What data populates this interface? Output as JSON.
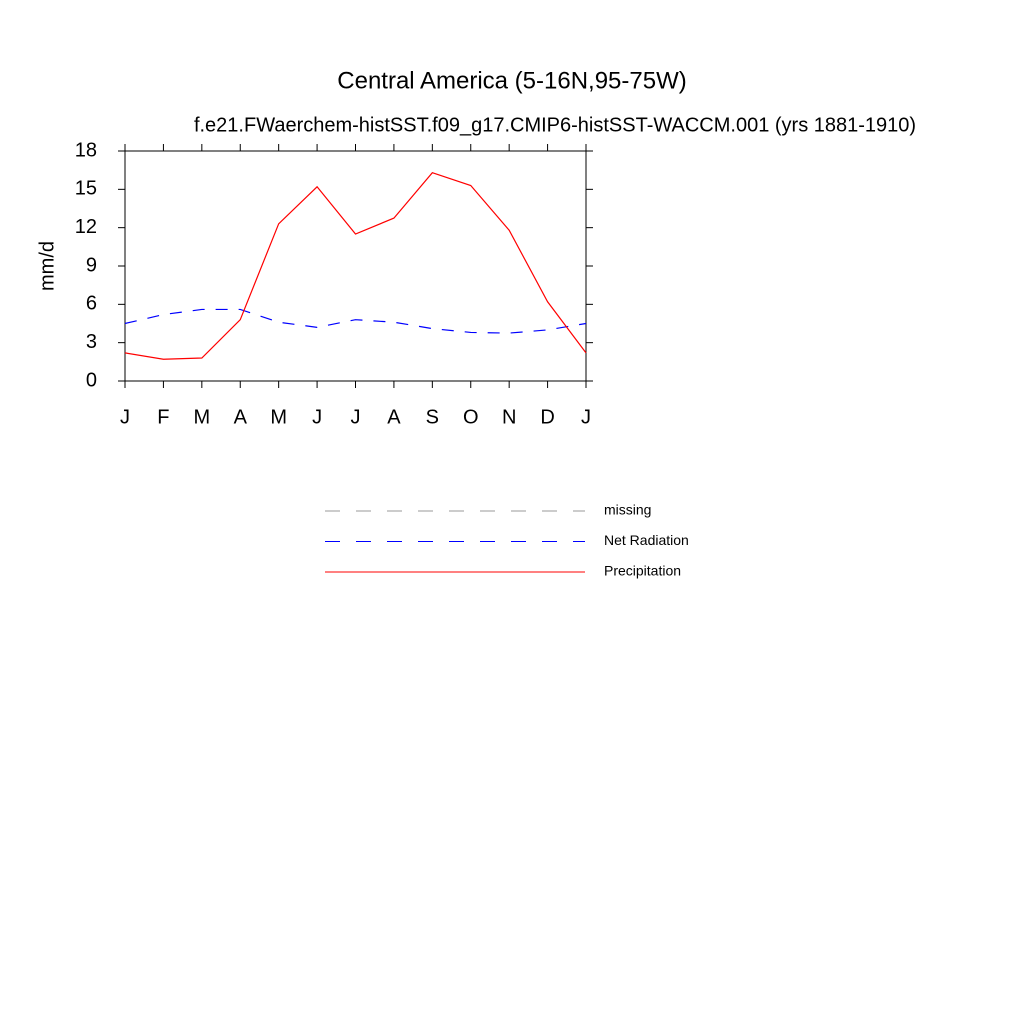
{
  "chart_data": {
    "type": "line",
    "title": "Central America (5-16N,95-75W)",
    "subtitle": "f.e21.FWaerchem-histSST.f09_g17.CMIP6-histSST-WACCM.001 (yrs 1881-1910)",
    "y_label": "mm/d",
    "categories": [
      "J",
      "F",
      "M",
      "A",
      "M",
      "J",
      "J",
      "A",
      "S",
      "O",
      "N",
      "D",
      "J"
    ],
    "ylim": [
      0,
      18
    ],
    "yticks": [
      0,
      3,
      6,
      9,
      12,
      15,
      18
    ],
    "series": [
      {
        "name": "missing",
        "color": "#999999",
        "linestyle": "dashed",
        "values": [
          null,
          null,
          null,
          null,
          null,
          null,
          null,
          null,
          null,
          null,
          null,
          null,
          null
        ]
      },
      {
        "name": "Net Radiation",
        "color": "#0000ff",
        "linestyle": "dashed",
        "values": [
          4.5,
          5.2,
          5.6,
          5.6,
          4.6,
          4.2,
          4.8,
          4.6,
          4.1,
          3.8,
          3.75,
          4.0,
          4.5
        ]
      },
      {
        "name": "Precipitation",
        "color": "#ff0000",
        "linestyle": "solid",
        "values": [
          2.2,
          1.7,
          1.8,
          4.8,
          12.3,
          15.2,
          11.5,
          12.75,
          16.3,
          15.3,
          11.8,
          6.2,
          2.2
        ]
      }
    ]
  }
}
